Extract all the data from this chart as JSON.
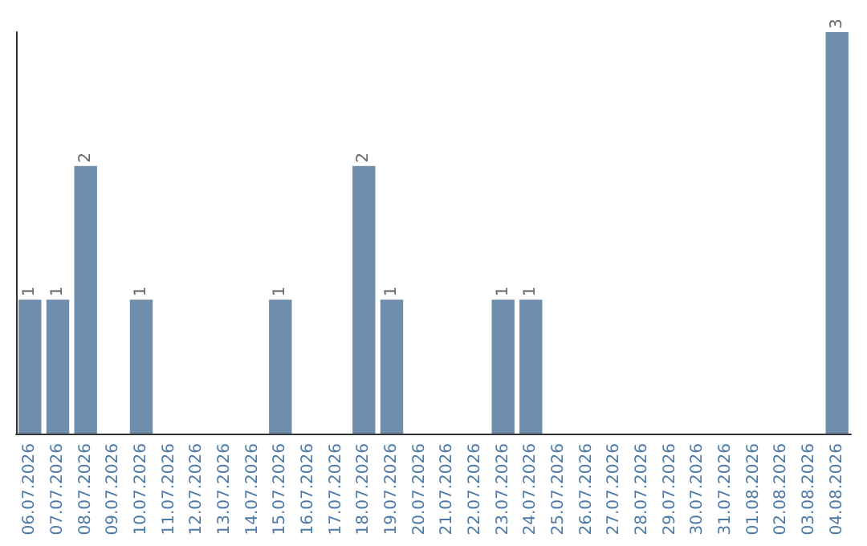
{
  "chart_data": {
    "type": "bar",
    "categories": [
      "06.07.2026",
      "07.07.2026",
      "08.07.2026",
      "09.07.2026",
      "10.07.2026",
      "11.07.2026",
      "12.07.2026",
      "13.07.2026",
      "14.07.2026",
      "15.07.2026",
      "16.07.2026",
      "17.07.2026",
      "18.07.2026",
      "19.07.2026",
      "20.07.2026",
      "21.07.2026",
      "22.07.2026",
      "23.07.2026",
      "24.07.2026",
      "25.07.2026",
      "26.07.2026",
      "27.07.2026",
      "28.07.2026",
      "29.07.2026",
      "30.07.2026",
      "31.07.2026",
      "01.08.2026",
      "02.08.2026",
      "03.08.2026",
      "04.08.2026"
    ],
    "values": [
      1,
      1,
      2,
      0,
      1,
      0,
      0,
      0,
      0,
      1,
      0,
      0,
      2,
      1,
      0,
      0,
      0,
      1,
      1,
      0,
      0,
      0,
      0,
      0,
      0,
      0,
      0,
      0,
      0,
      3
    ],
    "value_labels": [
      "1",
      "1",
      "2",
      null,
      "1",
      null,
      null,
      null,
      null,
      "1",
      null,
      null,
      "2",
      "1",
      null,
      null,
      null,
      "1",
      "1",
      null,
      null,
      null,
      null,
      null,
      null,
      null,
      null,
      null,
      null,
      "3"
    ],
    "color": "#6e8dab",
    "tick_labels": "x"
  }
}
